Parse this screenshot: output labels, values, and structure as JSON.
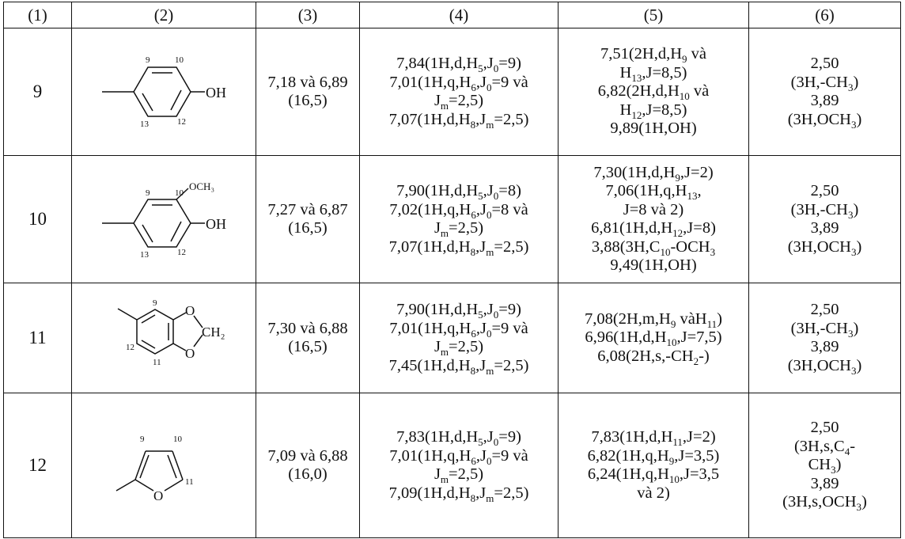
{
  "headers": [
    "(1)",
    "(2)",
    "(3)",
    "(4)",
    "(5)",
    "(6)"
  ],
  "rows": [
    {
      "num": "9",
      "structure": {
        "group": "OH",
        "atom_labels": [
          "9",
          "10",
          "13",
          "12"
        ]
      },
      "col3": [
        "7,18 và 6,89",
        "(16,5)"
      ],
      "col4": [
        [
          [
            "7,84(1H,d,H",
            ""
          ],
          [
            "5",
            1
          ],
          [
            ",J",
            ""
          ],
          [
            "0",
            1
          ],
          [
            "=9)",
            ""
          ]
        ],
        [
          [
            "7,01(1H,q,H",
            ""
          ],
          [
            "6",
            1
          ],
          [
            ",J",
            ""
          ],
          [
            "0",
            1
          ],
          [
            "=9 và",
            ""
          ]
        ],
        [
          [
            "J",
            ""
          ],
          [
            "m",
            1
          ],
          [
            "=2,5)",
            ""
          ]
        ],
        [
          [
            "7,07(1H,d,H",
            ""
          ],
          [
            "8",
            1
          ],
          [
            ",J",
            ""
          ],
          [
            "m",
            1
          ],
          [
            "=2,5)",
            ""
          ]
        ]
      ],
      "col5": [
        [
          [
            "7,51(2H,d,H",
            ""
          ],
          [
            "9",
            1
          ],
          [
            " và",
            ""
          ]
        ],
        [
          [
            "H",
            ""
          ],
          [
            "13",
            1
          ],
          [
            ",J=8,5)",
            ""
          ]
        ],
        [
          [
            "6,82(2H,d,H",
            ""
          ],
          [
            "10",
            1
          ],
          [
            " và",
            ""
          ]
        ],
        [
          [
            "H",
            ""
          ],
          [
            "12",
            1
          ],
          [
            ",J=8,5)",
            ""
          ]
        ],
        [
          [
            "9,89(1H,OH)",
            ""
          ]
        ]
      ],
      "col6": [
        [
          [
            "2,50",
            ""
          ]
        ],
        [
          [
            "(3H,-CH",
            ""
          ],
          [
            "3",
            1
          ],
          [
            ")",
            ""
          ]
        ],
        [
          [
            "3,89",
            ""
          ]
        ],
        [
          [
            "(3H,OCH",
            ""
          ],
          [
            "3",
            1
          ],
          [
            ")",
            ""
          ]
        ]
      ]
    },
    {
      "num": "10",
      "structure": {
        "group": "OH",
        "methoxy": "OCH₃",
        "atom_labels": [
          "9",
          "10",
          "13",
          "12"
        ]
      },
      "col3": [
        "7,27 và 6,87",
        "(16,5)"
      ],
      "col4": [
        [
          [
            "7,90(1H,d,H",
            ""
          ],
          [
            "5",
            1
          ],
          [
            ",J",
            ""
          ],
          [
            "0",
            1
          ],
          [
            "=8)",
            ""
          ]
        ],
        [
          [
            "7,02(1H,q,H",
            ""
          ],
          [
            "6",
            1
          ],
          [
            ",J",
            ""
          ],
          [
            "0",
            1
          ],
          [
            "=8 và",
            ""
          ]
        ],
        [
          [
            "J",
            ""
          ],
          [
            "m",
            1
          ],
          [
            "=2,5)",
            ""
          ]
        ],
        [
          [
            "7,07(1H,d,H",
            ""
          ],
          [
            "8",
            1
          ],
          [
            ",J",
            ""
          ],
          [
            "m",
            1
          ],
          [
            "=2,5)",
            ""
          ]
        ]
      ],
      "col5": [
        [
          [
            "7,30(1H,d,H",
            ""
          ],
          [
            "9",
            1
          ],
          [
            ",J=2)",
            ""
          ]
        ],
        [
          [
            "7,06(1H,q,H",
            ""
          ],
          [
            "13",
            1
          ],
          [
            ",",
            ""
          ]
        ],
        [
          [
            "J=8 và 2)",
            ""
          ]
        ],
        [
          [
            "6,81(1H,d,H",
            ""
          ],
          [
            "12",
            1
          ],
          [
            ",J=8)",
            ""
          ]
        ],
        [
          [
            "3,88(3H,C",
            ""
          ],
          [
            "10",
            1
          ],
          [
            "-OCH",
            ""
          ],
          [
            "3",
            1
          ]
        ],
        [
          [
            "9,49(1H,OH)",
            ""
          ]
        ]
      ],
      "col6": [
        [
          [
            "2,50",
            ""
          ]
        ],
        [
          [
            "(3H,-CH",
            ""
          ],
          [
            "3",
            1
          ],
          [
            ")",
            ""
          ]
        ],
        [
          [
            "3,89",
            ""
          ]
        ],
        [
          [
            "(3H,OCH",
            ""
          ],
          [
            "3",
            1
          ],
          [
            ")",
            ""
          ]
        ]
      ]
    },
    {
      "num": "11",
      "structure": {
        "group": "CH₂",
        "atom_labels": [
          "9",
          "12",
          "11"
        ]
      },
      "col3": [
        "7,30 và 6,88",
        "(16,5)"
      ],
      "col4": [
        [
          [
            "7,90(1H,d,H",
            ""
          ],
          [
            "5",
            1
          ],
          [
            ",J",
            ""
          ],
          [
            "0",
            1
          ],
          [
            "=9)",
            ""
          ]
        ],
        [
          [
            "7,01(1H,q,H",
            ""
          ],
          [
            "6",
            1
          ],
          [
            ",J",
            ""
          ],
          [
            "0",
            1
          ],
          [
            "=9 và",
            ""
          ]
        ],
        [
          [
            "J",
            ""
          ],
          [
            "m",
            1
          ],
          [
            "=2,5)",
            ""
          ]
        ],
        [
          [
            "7,45(1H,d,H",
            ""
          ],
          [
            "8",
            1
          ],
          [
            ",J",
            ""
          ],
          [
            "m",
            1
          ],
          [
            "=2,5)",
            ""
          ]
        ]
      ],
      "col5": [
        [
          [
            "7,08(2H,m,H",
            ""
          ],
          [
            "9",
            1
          ],
          [
            " vàH",
            ""
          ],
          [
            "11",
            1
          ],
          [
            ")",
            ""
          ]
        ],
        [
          [
            "6,96(1H,d,H",
            ""
          ],
          [
            "10",
            1
          ],
          [
            ",J=7,5)",
            ""
          ]
        ],
        [
          [
            "6,08(2H,s,-CH",
            ""
          ],
          [
            "2",
            1
          ],
          [
            "-)",
            ""
          ]
        ]
      ],
      "col6": [
        [
          [
            "2,50",
            ""
          ]
        ],
        [
          [
            "(3H,-CH",
            ""
          ],
          [
            "3",
            1
          ],
          [
            ")",
            ""
          ]
        ],
        [
          [
            "3,89",
            ""
          ]
        ],
        [
          [
            "(3H,OCH",
            ""
          ],
          [
            "3",
            1
          ],
          [
            ")",
            ""
          ]
        ]
      ]
    },
    {
      "num": "12",
      "structure": {
        "atom_labels": [
          "9",
          "10",
          "11"
        ]
      },
      "col3": [
        "7,09 và 6,88",
        "(16,0)"
      ],
      "col4": [
        [
          [
            "7,83(1H,d,H",
            ""
          ],
          [
            "5",
            1
          ],
          [
            ",J",
            ""
          ],
          [
            "0",
            1
          ],
          [
            "=9)",
            ""
          ]
        ],
        [
          [
            "7,01(1H,q,H",
            ""
          ],
          [
            "6",
            1
          ],
          [
            ",J",
            ""
          ],
          [
            "0",
            1
          ],
          [
            "=9 và",
            ""
          ]
        ],
        [
          [
            "J",
            ""
          ],
          [
            "m",
            1
          ],
          [
            "=2,5)",
            ""
          ]
        ],
        [
          [
            "7,09(1H,d,H",
            ""
          ],
          [
            "8",
            1
          ],
          [
            ",J",
            ""
          ],
          [
            "m",
            1
          ],
          [
            "=2,5)",
            ""
          ]
        ]
      ],
      "col5": [
        [
          [
            "7,83(1H,d,H",
            ""
          ],
          [
            "11",
            1
          ],
          [
            ",J=2)",
            ""
          ]
        ],
        [
          [
            "6,82(1H,q,H",
            ""
          ],
          [
            "9",
            1
          ],
          [
            ",J=3,5)",
            ""
          ]
        ],
        [
          [
            "6,24(1H,q,H",
            ""
          ],
          [
            "10",
            1
          ],
          [
            ",J=3,5",
            ""
          ]
        ],
        [
          [
            "và 2)",
            ""
          ]
        ]
      ],
      "col6": [
        [
          [
            "2,50",
            ""
          ]
        ],
        [
          [
            "(3H,s,C",
            ""
          ],
          [
            "4",
            1
          ],
          [
            "-",
            ""
          ]
        ],
        [
          [
            "CH",
            ""
          ],
          [
            "3",
            1
          ],
          [
            ")",
            ""
          ]
        ],
        [
          [
            "3,89",
            ""
          ]
        ],
        [
          [
            "(3H,s,OCH",
            ""
          ],
          [
            "3",
            1
          ],
          [
            ")",
            ""
          ]
        ]
      ]
    }
  ]
}
